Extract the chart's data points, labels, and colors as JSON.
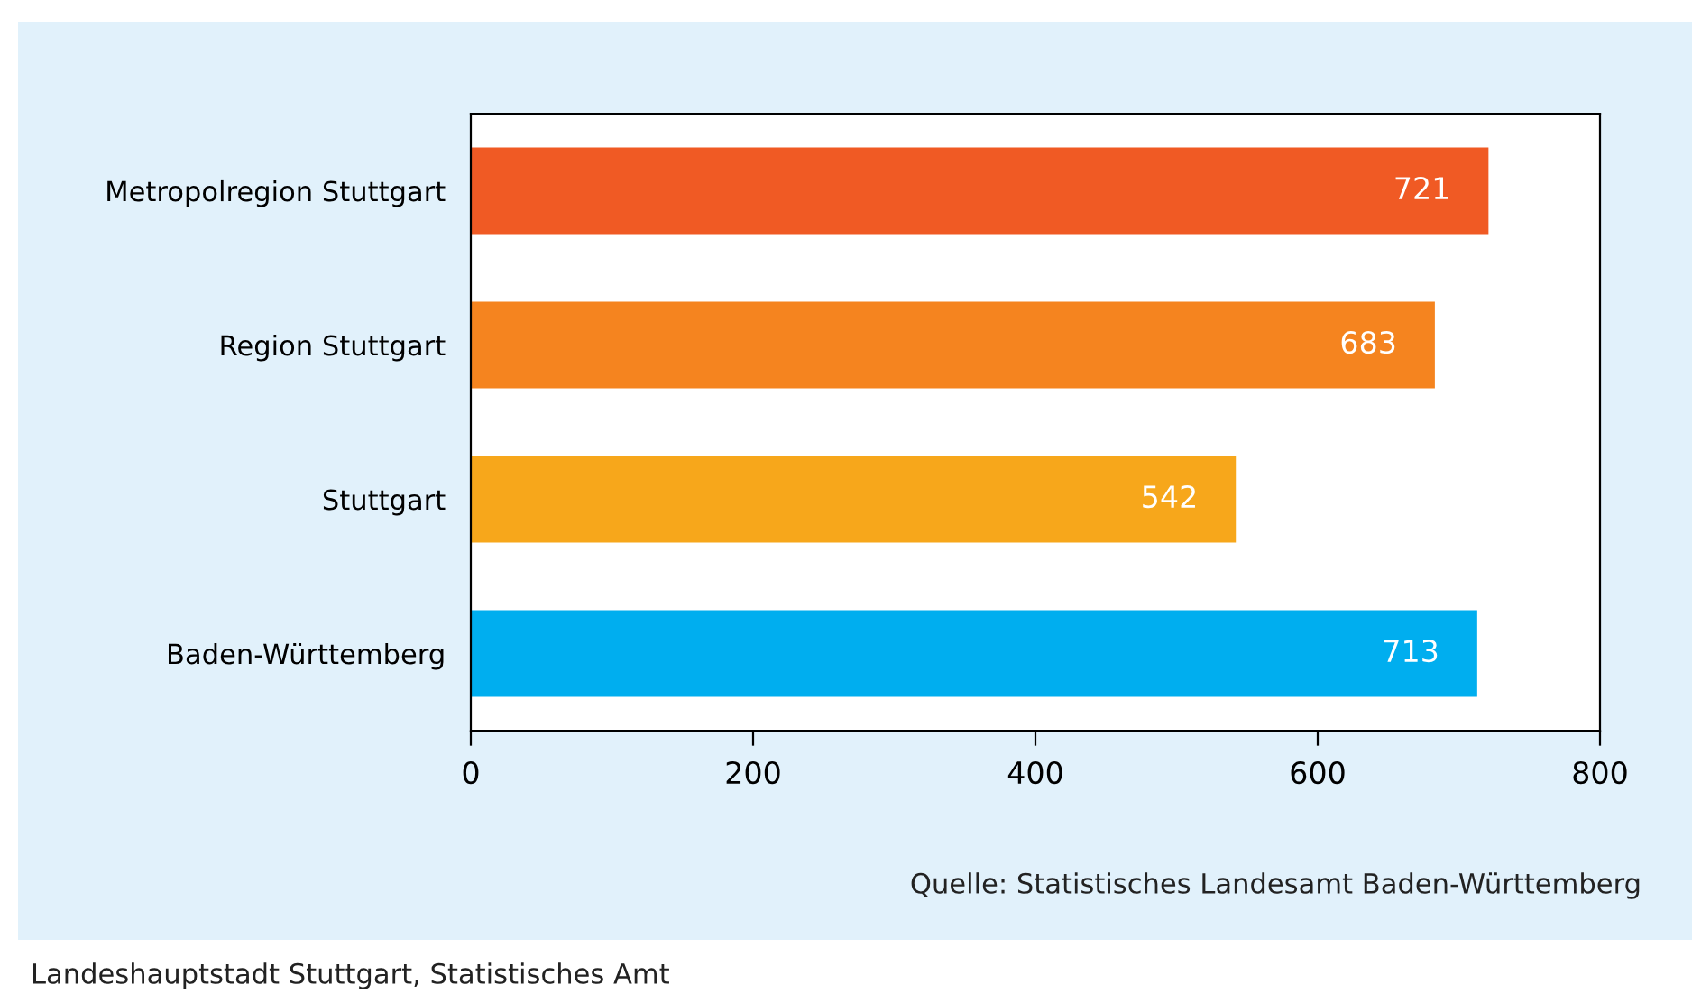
{
  "chart_data": {
    "type": "bar",
    "orientation": "horizontal",
    "categories": [
      "Metropolregion Stuttgart",
      "Region Stuttgart",
      "Stuttgart",
      "Baden-Württemberg"
    ],
    "values": [
      721,
      683,
      542,
      713
    ],
    "colors": [
      "#f05a24",
      "#f5841f",
      "#f7a71b",
      "#00aeef"
    ],
    "xlim": [
      0,
      800
    ],
    "xticks": [
      0,
      200,
      400,
      600,
      800
    ],
    "grid": false,
    "data_labels": true,
    "annotations": [
      "Quelle: Statistisches Landesamt Baden-Württemberg",
      "Landeshauptstadt Stuttgart, Statistisches Amt"
    ]
  }
}
